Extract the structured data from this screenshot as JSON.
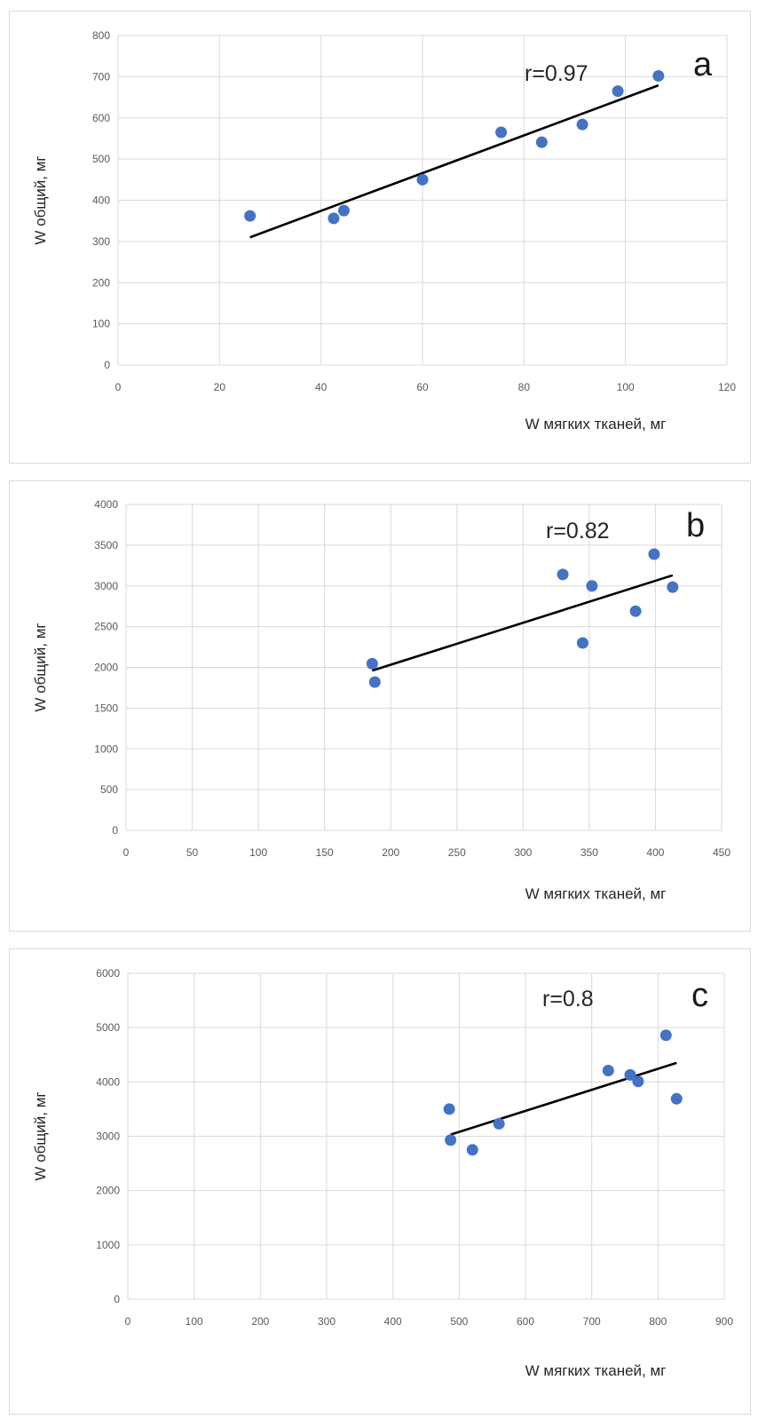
{
  "chart_data": [
    {
      "type": "scatter",
      "panel_label": "a",
      "annotation": "r=0.97",
      "xlabel": "W мягких тканей, мг",
      "ylabel": "W общий, мг",
      "xlim": [
        0,
        120
      ],
      "ylim": [
        0,
        800
      ],
      "x_ticks": [
        0,
        20,
        40,
        60,
        80,
        100,
        120
      ],
      "y_ticks": [
        0,
        100,
        200,
        300,
        400,
        500,
        600,
        700,
        800
      ],
      "grid": true,
      "marker_color": "#4472c4",
      "trendline_color": "#000000",
      "points": [
        {
          "x": 26,
          "y": 362
        },
        {
          "x": 42.5,
          "y": 356
        },
        {
          "x": 44.5,
          "y": 375
        },
        {
          "x": 60,
          "y": 450
        },
        {
          "x": 75.5,
          "y": 565
        },
        {
          "x": 83.5,
          "y": 541
        },
        {
          "x": 91.5,
          "y": 584
        },
        {
          "x": 98.5,
          "y": 665
        },
        {
          "x": 106.5,
          "y": 702
        }
      ],
      "trendline": [
        {
          "x": 26,
          "y": 310
        },
        {
          "x": 106.5,
          "y": 679
        }
      ]
    },
    {
      "type": "scatter",
      "panel_label": "b",
      "annotation": "r=0.82",
      "xlabel": "W мягких тканей, мг",
      "ylabel": "W общий, мг",
      "xlim": [
        0,
        450
      ],
      "ylim": [
        0,
        4000
      ],
      "x_ticks": [
        0,
        50,
        100,
        150,
        200,
        250,
        300,
        350,
        400,
        450
      ],
      "y_ticks": [
        0,
        500,
        1000,
        1500,
        2000,
        2500,
        3000,
        3500,
        4000
      ],
      "grid": true,
      "marker_color": "#4472c4",
      "trendline_color": "#000000",
      "points": [
        {
          "x": 186,
          "y": 2045
        },
        {
          "x": 188,
          "y": 1820
        },
        {
          "x": 330,
          "y": 3140
        },
        {
          "x": 345,
          "y": 2300
        },
        {
          "x": 352,
          "y": 3000
        },
        {
          "x": 385,
          "y": 2690
        },
        {
          "x": 399,
          "y": 3390
        },
        {
          "x": 413,
          "y": 2985
        }
      ],
      "trendline": [
        {
          "x": 186,
          "y": 1960
        },
        {
          "x": 413,
          "y": 3130
        }
      ]
    },
    {
      "type": "scatter",
      "panel_label": "c",
      "annotation": "r=0.8",
      "xlabel": "W мягких тканей, мг",
      "ylabel": "W общий, мг",
      "xlim": [
        0,
        900
      ],
      "ylim": [
        0,
        6000
      ],
      "x_ticks": [
        0,
        100,
        200,
        300,
        400,
        500,
        600,
        700,
        800,
        900
      ],
      "y_ticks": [
        0,
        1000,
        2000,
        3000,
        4000,
        5000,
        6000
      ],
      "grid": true,
      "marker_color": "#4472c4",
      "trendline_color": "#000000",
      "points": [
        {
          "x": 485,
          "y": 3500
        },
        {
          "x": 487,
          "y": 2930
        },
        {
          "x": 520,
          "y": 2750
        },
        {
          "x": 560,
          "y": 3230
        },
        {
          "x": 725,
          "y": 4210
        },
        {
          "x": 758,
          "y": 4130
        },
        {
          "x": 770,
          "y": 4010
        },
        {
          "x": 812,
          "y": 4860
        },
        {
          "x": 828,
          "y": 3690
        }
      ],
      "trendline": [
        {
          "x": 487,
          "y": 3030
        },
        {
          "x": 828,
          "y": 4350
        }
      ]
    }
  ]
}
